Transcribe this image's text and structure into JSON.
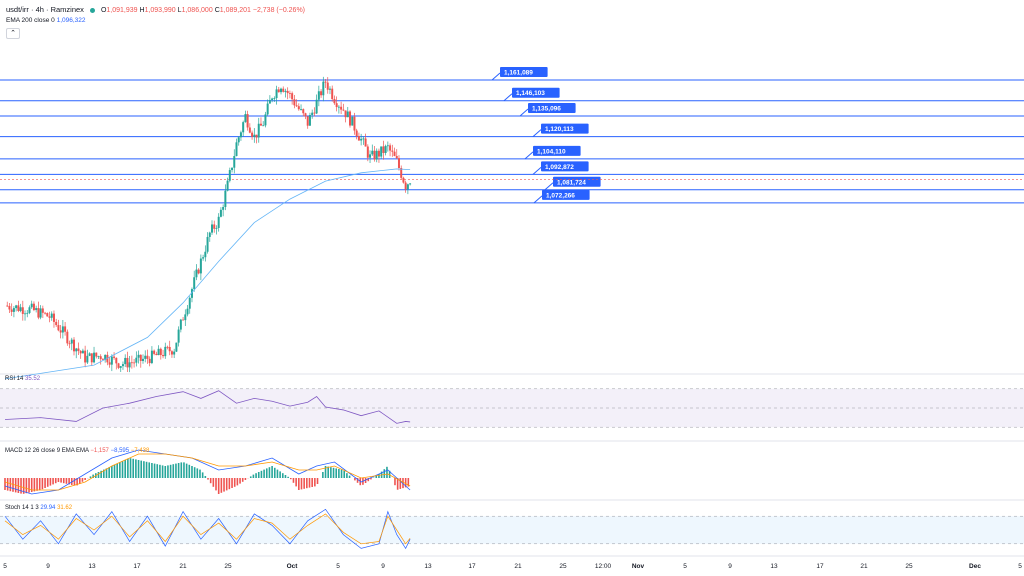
{
  "header": {
    "symbol": "usdt/irr · 4h · Ramzinex",
    "open_label": "O",
    "open": "1,091,939",
    "high_label": "H",
    "high": "1,093,990",
    "low_label": "L",
    "low": "1,086,000",
    "close_label": "C",
    "close": "1,089,201",
    "change": "−2,738 (−0.26%)",
    "ema_label": "EMA 200 close 0",
    "ema_value": "1,096,322",
    "collapse_icon": "chevron-up-icon"
  },
  "indicators": {
    "rsi_label": "RSI 14",
    "rsi_value": "35.52",
    "macd_label": "MACD 12 26 close 9 EMA EMA",
    "macd_values": [
      "−1,157",
      "−8,595",
      "−7,438"
    ],
    "stoch_label": "Stoch 14 1 3",
    "stoch_values": [
      "29.94",
      "31.62"
    ]
  },
  "colors": {
    "up": "#26a69a",
    "down": "#ef5350",
    "level_line": "#2962ff",
    "ema": "#64b5f6",
    "rsi": "#7e57c2",
    "macd": "#2962ff",
    "signal": "#ff9800"
  },
  "chart_data": {
    "type": "candlestick",
    "title": "usdt/irr · 4h · Ramzinex",
    "ylim": [
      950000,
      1190000
    ],
    "x_tick_labels": [
      "5",
      "9",
      "13",
      "17",
      "21",
      "25",
      "Oct",
      "5",
      "9",
      "13",
      "17",
      "21",
      "25",
      "12:00",
      "Nov",
      "5",
      "9",
      "13",
      "17",
      "21",
      "25",
      "Dec",
      "5"
    ],
    "horizontal_levels": [
      1161089,
      1146103,
      1135096,
      1120113,
      1104110,
      1092872,
      1081724,
      1072266
    ],
    "price_series": [
      [
        0,
        998000
      ],
      [
        3,
        995000
      ],
      [
        5,
        990000
      ],
      [
        7,
        975000
      ],
      [
        9,
        960000
      ],
      [
        11,
        962000
      ],
      [
        13,
        956000
      ],
      [
        15,
        958000
      ],
      [
        17,
        962000
      ],
      [
        19,
        967000
      ],
      [
        20,
        990000
      ],
      [
        21,
        1010000
      ],
      [
        22,
        1030000
      ],
      [
        23,
        1050000
      ],
      [
        24,
        1060000
      ],
      [
        25,
        1085000
      ],
      [
        26,
        1115000
      ],
      [
        27,
        1135000
      ],
      [
        28,
        1120000
      ],
      [
        29,
        1130000
      ],
      [
        30,
        1150000
      ],
      [
        31,
        1158000
      ],
      [
        32,
        1150000
      ],
      [
        33,
        1140000
      ],
      [
        34,
        1130000
      ],
      [
        35,
        1145000
      ],
      [
        36,
        1160000
      ],
      [
        37,
        1148000
      ],
      [
        38,
        1140000
      ],
      [
        39,
        1130000
      ],
      [
        40,
        1118000
      ],
      [
        41,
        1105000
      ],
      [
        42,
        1108000
      ],
      [
        43,
        1112000
      ],
      [
        44,
        1102000
      ],
      [
        45,
        1085000
      ],
      [
        45.5,
        1089201
      ]
    ],
    "ema200": [
      [
        0,
        945000
      ],
      [
        10,
        955000
      ],
      [
        16,
        975000
      ],
      [
        20,
        1000000
      ],
      [
        24,
        1030000
      ],
      [
        28,
        1058000
      ],
      [
        32,
        1075000
      ],
      [
        36,
        1088000
      ],
      [
        40,
        1094000
      ],
      [
        44,
        1096800
      ],
      [
        45.5,
        1096322
      ]
    ],
    "rsi": {
      "value": 35.52,
      "levels": [
        70,
        50,
        30
      ],
      "series": [
        [
          0,
          38
        ],
        [
          4,
          40
        ],
        [
          8,
          36
        ],
        [
          11,
          50
        ],
        [
          14,
          55
        ],
        [
          17,
          62
        ],
        [
          20,
          67
        ],
        [
          22,
          60
        ],
        [
          24,
          68
        ],
        [
          26,
          55
        ],
        [
          28,
          60
        ],
        [
          30,
          57
        ],
        [
          32,
          52
        ],
        [
          34,
          56
        ],
        [
          35,
          62
        ],
        [
          36,
          51
        ],
        [
          38,
          48
        ],
        [
          40,
          42
        ],
        [
          42,
          47
        ],
        [
          44,
          34
        ],
        [
          45,
          36
        ],
        [
          45.5,
          35.5
        ]
      ]
    },
    "macd": {
      "values": {
        "histogram": -1157,
        "macd": -8595,
        "signal": -7438
      },
      "histogram": [
        [
          0,
          -3
        ],
        [
          2,
          -4
        ],
        [
          4,
          -3
        ],
        [
          6,
          -1
        ],
        [
          8,
          -2
        ],
        [
          10,
          1
        ],
        [
          12,
          3
        ],
        [
          14,
          5
        ],
        [
          16,
          4
        ],
        [
          18,
          3
        ],
        [
          20,
          4
        ],
        [
          22,
          2
        ],
        [
          24,
          -4
        ],
        [
          26,
          -2
        ],
        [
          28,
          1
        ],
        [
          30,
          3
        ],
        [
          32,
          0
        ],
        [
          33,
          -3
        ],
        [
          35,
          -2
        ],
        [
          36,
          3
        ],
        [
          38,
          2
        ],
        [
          40,
          -2
        ],
        [
          42,
          1
        ],
        [
          43,
          3
        ],
        [
          44,
          -3
        ],
        [
          45.5,
          -2
        ]
      ],
      "macd_line": [
        [
          0,
          -2
        ],
        [
          3,
          -4
        ],
        [
          6,
          -3
        ],
        [
          9,
          1
        ],
        [
          12,
          5
        ],
        [
          15,
          7
        ],
        [
          18,
          6
        ],
        [
          21,
          5
        ],
        [
          24,
          2
        ],
        [
          27,
          3
        ],
        [
          30,
          5
        ],
        [
          33,
          1
        ],
        [
          35,
          3
        ],
        [
          37,
          4
        ],
        [
          40,
          -1
        ],
        [
          43,
          2
        ],
        [
          45.5,
          -3
        ]
      ],
      "signal_line": [
        [
          0,
          -1
        ],
        [
          3,
          -3
        ],
        [
          6,
          -3
        ],
        [
          9,
          -1
        ],
        [
          12,
          3
        ],
        [
          15,
          6
        ],
        [
          18,
          6
        ],
        [
          21,
          5
        ],
        [
          24,
          3
        ],
        [
          27,
          3
        ],
        [
          30,
          4
        ],
        [
          33,
          2
        ],
        [
          35,
          2
        ],
        [
          37,
          3
        ],
        [
          40,
          0
        ],
        [
          43,
          1
        ],
        [
          45.5,
          -2
        ]
      ]
    },
    "stoch": {
      "values": {
        "k": 29.94,
        "d": 31.62
      },
      "k": [
        [
          0,
          80
        ],
        [
          2,
          30
        ],
        [
          4,
          70
        ],
        [
          6,
          20
        ],
        [
          8,
          85
        ],
        [
          10,
          40
        ],
        [
          12,
          90
        ],
        [
          14,
          25
        ],
        [
          16,
          80
        ],
        [
          18,
          15
        ],
        [
          20,
          90
        ],
        [
          22,
          30
        ],
        [
          24,
          75
        ],
        [
          26,
          20
        ],
        [
          28,
          85
        ],
        [
          30,
          60
        ],
        [
          32,
          20
        ],
        [
          34,
          70
        ],
        [
          36,
          95
        ],
        [
          38,
          40
        ],
        [
          40,
          10
        ],
        [
          42,
          20
        ],
        [
          43,
          90
        ],
        [
          44,
          40
        ],
        [
          45,
          10
        ],
        [
          45.5,
          30
        ]
      ],
      "d": [
        [
          0,
          70
        ],
        [
          2,
          40
        ],
        [
          4,
          60
        ],
        [
          6,
          30
        ],
        [
          8,
          75
        ],
        [
          10,
          50
        ],
        [
          12,
          80
        ],
        [
          14,
          35
        ],
        [
          16,
          70
        ],
        [
          18,
          25
        ],
        [
          20,
          80
        ],
        [
          22,
          40
        ],
        [
          24,
          65
        ],
        [
          26,
          30
        ],
        [
          28,
          75
        ],
        [
          30,
          65
        ],
        [
          32,
          30
        ],
        [
          34,
          60
        ],
        [
          36,
          85
        ],
        [
          38,
          45
        ],
        [
          40,
          20
        ],
        [
          42,
          25
        ],
        [
          43,
          80
        ],
        [
          44,
          50
        ],
        [
          45,
          20
        ],
        [
          45.5,
          32
        ]
      ]
    }
  }
}
